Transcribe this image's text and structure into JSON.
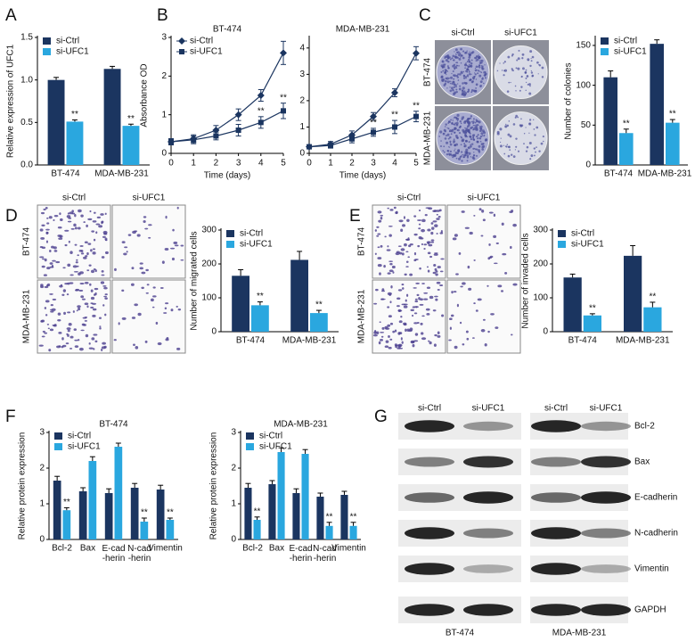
{
  "panel_labels": [
    "A",
    "B",
    "C",
    "D",
    "E",
    "F",
    "G"
  ],
  "chart_data": [
    {
      "type": "bar",
      "ylabel": "Relative expression of UFC1",
      "categories": [
        "BT-474",
        "MDA-MB-231"
      ],
      "series": [
        {
          "name": "si-Ctrl",
          "color": "#1b3560",
          "values": [
            1.0,
            1.13
          ],
          "errors": [
            0.03,
            0.03
          ]
        },
        {
          "name": "si-UFC1",
          "color": "#2aa7df",
          "values": [
            0.51,
            0.46
          ],
          "errors": [
            0.02,
            0.02
          ],
          "annotations": [
            "**",
            "**"
          ]
        }
      ],
      "ylim": [
        0,
        1.5
      ],
      "yticks": [
        {
          "value": 0,
          "label": "0.0"
        },
        {
          "value": 0.5,
          "label": "0.5"
        },
        {
          "value": 1,
          "label": "1.0"
        },
        {
          "value": 1.5,
          "label": "1.5"
        }
      ],
      "legend": true
    },
    {
      "type": "line",
      "title": "BT-474",
      "ylabel": "Absorbance OD",
      "xlabel": "Time (days)",
      "x": [
        0,
        1,
        2,
        3,
        4,
        5
      ],
      "series": [
        {
          "name": "si-Ctrl",
          "color": "#1b3560",
          "marker": "diamond",
          "values": [
            0.3,
            0.38,
            0.6,
            1.0,
            1.5,
            2.6
          ],
          "errors": [
            0.08,
            0.1,
            0.12,
            0.15,
            0.15,
            0.3
          ]
        },
        {
          "name": "si-UFC1",
          "color": "#1b3560",
          "marker": "square",
          "values": [
            0.3,
            0.35,
            0.45,
            0.6,
            0.8,
            1.1
          ],
          "errors": [
            0.08,
            0.1,
            0.1,
            0.15,
            0.15,
            0.2
          ],
          "annotations": [
            null,
            null,
            null,
            null,
            "**",
            "**"
          ]
        }
      ],
      "xlim": [
        0,
        5
      ],
      "xticks": [
        0,
        1,
        2,
        3,
        4,
        5
      ],
      "ylim": [
        0,
        3
      ],
      "yticks": [
        0,
        1,
        2,
        3
      ],
      "legend": true
    },
    {
      "type": "line",
      "title": "MDA-MB-231",
      "xlabel": "Time (days)",
      "x": [
        0,
        1,
        2,
        3,
        4,
        5
      ],
      "series": [
        {
          "name": "si-Ctrl",
          "color": "#1b3560",
          "marker": "diamond",
          "values": [
            0.25,
            0.35,
            0.7,
            1.4,
            2.3,
            3.8
          ],
          "errors": [
            0.05,
            0.1,
            0.15,
            0.15,
            0.15,
            0.25
          ]
        },
        {
          "name": "si-UFC1",
          "color": "#1b3560",
          "marker": "square",
          "values": [
            0.25,
            0.3,
            0.55,
            0.8,
            1.0,
            1.4
          ],
          "errors": [
            0.05,
            0.1,
            0.15,
            0.15,
            0.25,
            0.2
          ],
          "annotations": [
            null,
            null,
            null,
            "**",
            "**",
            "**"
          ]
        }
      ],
      "xlim": [
        0,
        5
      ],
      "xticks": [
        0,
        1,
        2,
        3,
        4,
        5
      ],
      "ylim": [
        0,
        4.4
      ],
      "yticks": [
        0,
        1,
        2,
        3,
        4
      ],
      "legend": false
    },
    {
      "type": "bar",
      "ylabel": "Number of colonies",
      "categories": [
        "BT-474",
        "MDA-MB-231"
      ],
      "series": [
        {
          "name": "si-Ctrl",
          "color": "#1b3560",
          "values": [
            110,
            152
          ],
          "errors": [
            8,
            5
          ]
        },
        {
          "name": "si-UFC1",
          "color": "#2aa7df",
          "values": [
            40,
            53
          ],
          "errors": [
            5,
            4
          ],
          "annotations": [
            "**",
            "**"
          ]
        }
      ],
      "ylim": [
        0,
        160
      ],
      "yticks": [
        0,
        50,
        100,
        150
      ],
      "legend": true
    },
    {
      "type": "bar",
      "ylabel": "Number of migrated cells",
      "categories": [
        "BT-474",
        "MDA-MB-231"
      ],
      "series": [
        {
          "name": "si-Ctrl",
          "color": "#1b3560",
          "values": [
            165,
            212
          ],
          "errors": [
            18,
            25
          ]
        },
        {
          "name": "si-UFC1",
          "color": "#2aa7df",
          "values": [
            78,
            55
          ],
          "errors": [
            10,
            8
          ],
          "annotations": [
            "**",
            "**"
          ]
        }
      ],
      "ylim": [
        0,
        300
      ],
      "yticks": [
        0,
        100,
        200,
        300
      ],
      "legend": true
    },
    {
      "type": "bar",
      "ylabel": "Number of invaded cells",
      "categories": [
        "BT-474",
        "MDA-MB-231"
      ],
      "series": [
        {
          "name": "si-Ctrl",
          "color": "#1b3560",
          "values": [
            160,
            224
          ],
          "errors": [
            10,
            30
          ]
        },
        {
          "name": "si-UFC1",
          "color": "#2aa7df",
          "values": [
            48,
            72
          ],
          "errors": [
            5,
            15
          ],
          "annotations": [
            "**",
            "**"
          ]
        }
      ],
      "ylim": [
        0,
        300
      ],
      "yticks": [
        0,
        100,
        200,
        300
      ],
      "legend": true
    },
    {
      "type": "bar",
      "title": "BT-474",
      "ylabel": "Relative protein expression",
      "categories": [
        "Bcl-2",
        "Bax",
        "E-cad\n-herin",
        "N-cad\n-herin",
        "Vimentin"
      ],
      "series": [
        {
          "name": "si-Ctrl",
          "color": "#1b3560",
          "values": [
            1.65,
            1.35,
            1.3,
            1.45,
            1.4
          ],
          "errors": [
            0.12,
            0.1,
            0.12,
            0.12,
            0.12
          ]
        },
        {
          "name": "si-UFC1",
          "color": "#2aa7df",
          "values": [
            0.82,
            2.2,
            2.6,
            0.5,
            0.55
          ],
          "errors": [
            0.07,
            0.12,
            0.1,
            0.1,
            0.05
          ],
          "annotations": [
            "**",
            null,
            null,
            "**",
            "**"
          ]
        }
      ],
      "ylim": [
        0,
        3
      ],
      "yticks": [
        0,
        1,
        2,
        3
      ],
      "legend": true
    },
    {
      "type": "bar",
      "title": "MDA-MB-231",
      "ylabel": "Relative protein expression",
      "categories": [
        "Bcl-2",
        "Bax",
        "E-cad\n-herin",
        "N-cad\n-herin",
        "Vimentin"
      ],
      "series": [
        {
          "name": "si-Ctrl",
          "color": "#1b3560",
          "values": [
            1.45,
            1.55,
            1.3,
            1.2,
            1.25
          ],
          "errors": [
            0.12,
            0.1,
            0.12,
            0.1,
            0.1
          ]
        },
        {
          "name": "si-UFC1",
          "color": "#2aa7df",
          "values": [
            0.55,
            2.45,
            2.4,
            0.38,
            0.38
          ],
          "errors": [
            0.08,
            0.12,
            0.12,
            0.1,
            0.1
          ],
          "annotations": [
            "**",
            null,
            null,
            "**",
            "**"
          ]
        }
      ],
      "ylim": [
        0,
        3
      ],
      "yticks": [
        0,
        1,
        2,
        3
      ],
      "legend": true
    }
  ],
  "images": [
    {
      "kind": "colony",
      "columns": [
        "si-Ctrl",
        "si-UFC1"
      ],
      "rows": [
        "BT-474",
        "MDA-MB-231"
      ]
    },
    {
      "kind": "transwell",
      "columns": [
        "si-Ctrl",
        "si-UFC1"
      ],
      "rows": [
        "BT-474",
        "MDA-MB-231"
      ]
    },
    {
      "kind": "transwell",
      "columns": [
        "si-Ctrl",
        "si-UFC1"
      ],
      "rows": [
        "BT-474",
        "MDA-MB-231"
      ]
    }
  ],
  "blot": {
    "columns": [
      "si-Ctrl",
      "si-UFC1"
    ],
    "proteins": [
      "Bcl-2",
      "Bax",
      "E-cadherin",
      "N-cadherin",
      "Vimentin",
      "GAPDH"
    ],
    "cell_lines": [
      "BT-474",
      "MDA-MB-231"
    ]
  }
}
